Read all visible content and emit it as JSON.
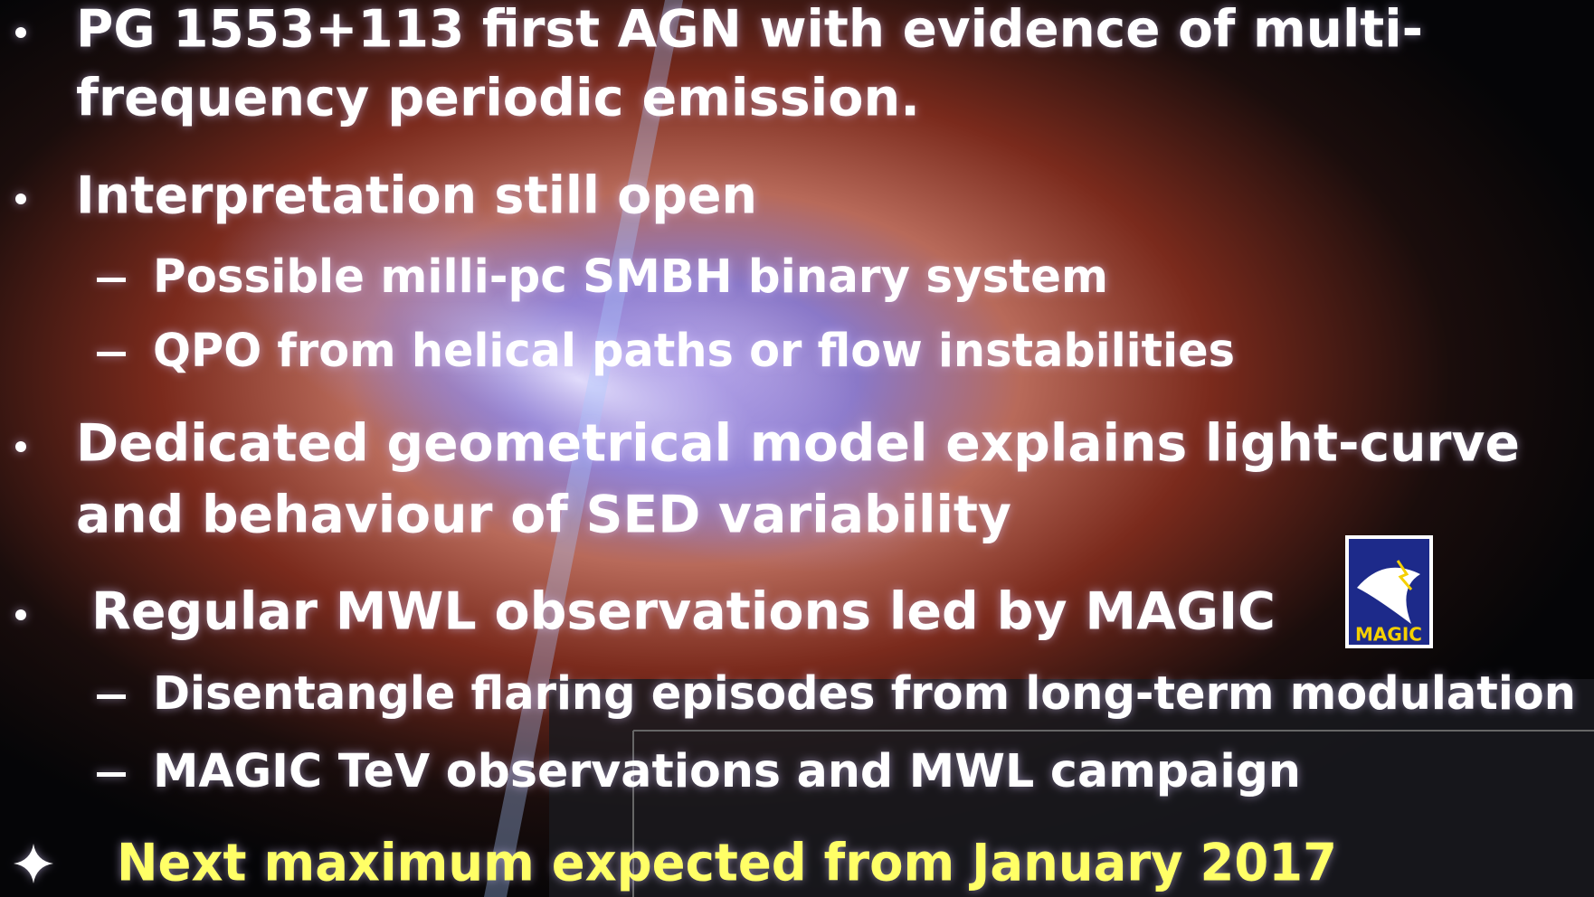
{
  "items": [
    {
      "lines": [
        "PG 1553+113 first AGN with evidence of multi-",
        "frequency periodic emission."
      ],
      "subitems": []
    },
    {
      "lines": [
        "Interpretation still open"
      ],
      "subitems": [
        "Possible milli-pc SMBH binary system",
        "QPO from helical paths or flow instabilities"
      ]
    },
    {
      "lines": [
        "Dedicated geometrical model explains light-curve",
        "and behaviour of SED variability"
      ],
      "subitems": []
    },
    {
      "lines": [
        "Regular MWL observations led by MAGIC"
      ],
      "subitems": [
        "Disentangle flaring episodes from long-term modulation",
        "MAGIC TeV observations and MWL campaign"
      ]
    }
  ],
  "highlight": "Next maximum expected from January 2017",
  "logo": "MAGIC"
}
